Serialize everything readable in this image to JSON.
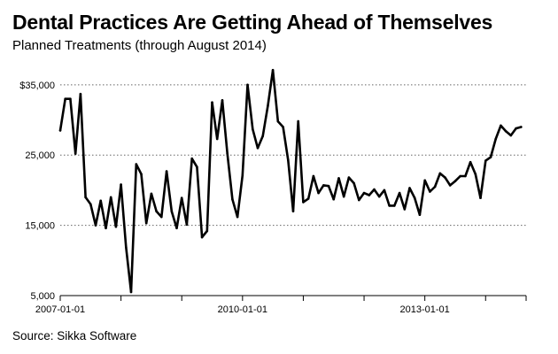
{
  "title": "Dental Practices Are Getting Ahead of Themselves",
  "subtitle": "Planned Treatments (through August 2014)",
  "source": "Source: Sikka Software",
  "chart_data": {
    "type": "line",
    "title": "Dental Practices Are Getting Ahead of Themselves",
    "subtitle": "Planned Treatments (through August 2014)",
    "xlabel": "",
    "ylabel": "",
    "ylim": [
      5000,
      37500
    ],
    "xlim_months": [
      0,
      92
    ],
    "y_ticks": [
      {
        "value": 35000,
        "label": "$35,000"
      },
      {
        "value": 25000,
        "label": "25,000"
      },
      {
        "value": 15000,
        "label": "15,000"
      },
      {
        "value": 5000,
        "label": "5,000"
      }
    ],
    "x_ticks": [
      {
        "month": 0,
        "label": "2007-01-01"
      },
      {
        "month": 36,
        "label": "2010-01-01"
      },
      {
        "month": 72,
        "label": "2013-01-01"
      }
    ],
    "grid": "horizontal-dotted",
    "line_color": "#000000",
    "series": [
      {
        "name": "Planned Treatments",
        "start": "2007-01",
        "step": "month",
        "values": [
          28500,
          33000,
          33000,
          25200,
          33700,
          19000,
          18000,
          15000,
          18500,
          14600,
          19000,
          14800,
          20800,
          11900,
          5500,
          23700,
          22300,
          15300,
          19500,
          17000,
          16200,
          22700,
          17000,
          14600,
          18900,
          15100,
          24500,
          23300,
          13300,
          14200,
          32500,
          27300,
          32800,
          25200,
          18700,
          16200,
          22100,
          35000,
          28700,
          26000,
          27700,
          32000,
          37100,
          29800,
          29000,
          24300,
          17000,
          29800,
          18300,
          18800,
          22000,
          19600,
          20700,
          20600,
          18700,
          21700,
          19100,
          21800,
          21000,
          18600,
          19600,
          19300,
          20100,
          19100,
          20000,
          17800,
          17800,
          19600,
          17300,
          20300,
          18900,
          16500,
          21400,
          19800,
          20500,
          22400,
          21800,
          20700,
          21300,
          22000,
          22000,
          24000,
          22300,
          18900,
          24200,
          24700,
          27300,
          29200,
          28400,
          27800,
          28800,
          29000
        ]
      }
    ]
  }
}
